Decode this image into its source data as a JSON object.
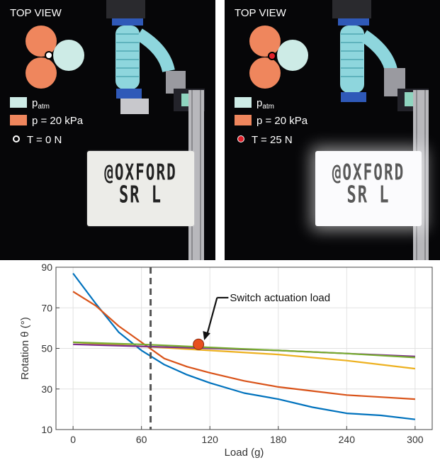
{
  "panels": [
    {
      "view_title": "TOP VIEW",
      "legend_patm_base": "p",
      "legend_patm_sub": "atm",
      "legend_pressure": "p = 20 kPa",
      "legend_tension": "T = 0 N",
      "sign_line1": "@OXFORD",
      "sign_line2": "SR L",
      "colors": {
        "chamber_pressurized": "#ef865d",
        "chamber_atm": "#cdebe6",
        "indicator": "#ffffff"
      }
    },
    {
      "view_title": "TOP VIEW",
      "legend_patm_base": "p",
      "legend_patm_sub": "atm",
      "legend_pressure": "p = 20 kPa",
      "legend_tension": "T = 25 N",
      "sign_line1": "@OXFORD",
      "sign_line2": "SR L",
      "colors": {
        "chamber_pressurized": "#ef865d",
        "chamber_atm": "#cdebe6",
        "indicator": "#e0202a"
      }
    }
  ],
  "chart_data": {
    "type": "line",
    "xlabel": "Load (g)",
    "ylabel": "Rotation θ (°)",
    "xlim": [
      -15,
      315
    ],
    "ylim": [
      10,
      90
    ],
    "x_ticks": [
      0,
      60,
      120,
      180,
      240,
      300
    ],
    "y_ticks": [
      10,
      30,
      50,
      70,
      90
    ],
    "grid": true,
    "series": [
      {
        "color": "#0072bd",
        "x": [
          0,
          20,
          40,
          60,
          80,
          100,
          120,
          150,
          180,
          210,
          240,
          270,
          300
        ],
        "values": [
          87,
          72,
          58,
          49,
          42,
          37,
          33,
          28,
          25,
          21,
          18,
          17,
          15
        ]
      },
      {
        "color": "#d95319",
        "x": [
          0,
          20,
          40,
          60,
          80,
          100,
          120,
          150,
          180,
          210,
          240,
          270,
          300
        ],
        "values": [
          78,
          71,
          61,
          53,
          45,
          41,
          38,
          34,
          31,
          29,
          27,
          26,
          25
        ]
      },
      {
        "color": "#edb120",
        "x": [
          0,
          60,
          120,
          180,
          240,
          300
        ],
        "values": [
          53,
          51,
          49,
          47,
          44,
          40
        ]
      },
      {
        "color": "#7e2f8e",
        "x": [
          0,
          60,
          120,
          180,
          240,
          300
        ],
        "values": [
          52,
          51,
          50,
          49,
          47.5,
          46
        ]
      },
      {
        "color": "#77ac30",
        "x": [
          0,
          60,
          120,
          180,
          240,
          300
        ],
        "values": [
          53,
          52,
          50.5,
          49,
          47.5,
          45.5
        ]
      }
    ],
    "vline": {
      "x": 68,
      "color": "#555555"
    },
    "marker": {
      "x": 110,
      "y": 52,
      "color": "#e8501e"
    },
    "annotation": {
      "text": "Switch actuation load",
      "text_x": 135,
      "text_y": 75,
      "arrow_x": 115,
      "arrow_y": 54
    }
  }
}
